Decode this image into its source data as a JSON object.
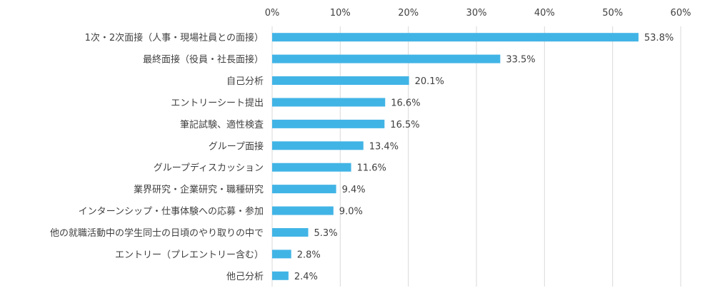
{
  "chart_data": {
    "type": "bar",
    "orientation": "horizontal",
    "title": "",
    "xlabel": "",
    "ylabel": "",
    "xlim": [
      0,
      60
    ],
    "ticks": [
      "0%",
      "10%",
      "20%",
      "30%",
      "40%",
      "50%",
      "60%"
    ],
    "tick_values": [
      0,
      10,
      20,
      30,
      40,
      50,
      60
    ],
    "grid": true,
    "legend": "none",
    "categories": [
      "1次・2次面接（人事・現場社員との面接）",
      "最終面接（役員・社長面接）",
      "自己分析",
      "エントリーシート提出",
      "筆記試験、適性検査",
      "グループ面接",
      "グループディスカッション",
      "業界研究・企業研究・職種研究",
      "インターンシップ・仕事体験への応募・参加",
      "他の就職活動中の学生同士の日頃のやり取りの中で",
      "エントリー（プレエントリー含む）",
      "他己分析"
    ],
    "values": [
      53.8,
      33.5,
      20.1,
      16.6,
      16.5,
      13.4,
      11.6,
      9.4,
      9.0,
      5.3,
      2.8,
      2.4
    ],
    "value_labels": [
      "53.8%",
      "33.5%",
      "20.1%",
      "16.6%",
      "16.5%",
      "13.4%",
      "11.6%",
      "9.4%",
      "9.0%",
      "5.3%",
      "2.8%",
      "2.4%"
    ],
    "colors": {
      "bar": "#41b4e6",
      "grid": "#d9d9d9",
      "text": "#404040"
    }
  }
}
